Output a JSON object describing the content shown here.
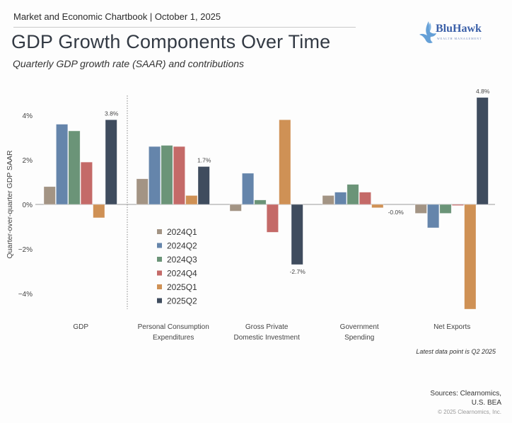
{
  "header": {
    "top_line": "Market and Economic Chartbook | October 1, 2025",
    "title": "GDP Growth Components Over Time",
    "subtitle": "Quarterly GDP growth rate (SAAR) and contributions"
  },
  "logo": {
    "name": "BluHawk",
    "tagline": "WEALTH MANAGEMENT",
    "icon": "hawk-icon"
  },
  "footer": {
    "latest_note": "Latest data point is Q2 2025",
    "sources_line1": "Sources: Clearnomics,",
    "sources_line2": "U.S. BEA",
    "copyright": "© 2025 Clearnomics, Inc."
  },
  "chart_data": {
    "type": "bar",
    "title": "GDP Growth Components Over Time",
    "subtitle": "Quarterly GDP growth rate (SAAR) and contributions",
    "xlabel": "",
    "ylabel": "Quarter-over-quarter GDP SAAR",
    "ylim": [
      -5,
      5.5
    ],
    "yticks": [
      4,
      2,
      0,
      -2,
      -4
    ],
    "ytick_labels": [
      "4%",
      "2%",
      "0%",
      "−2%",
      "−4%"
    ],
    "grid": false,
    "legend_position": "center-left (inside PCE group area)",
    "categories": [
      [
        "GDP"
      ],
      [
        "Personal Consumption",
        "Expenditures"
      ],
      [
        "Gross Private",
        "Domestic Investment"
      ],
      [
        "Government",
        "Spending"
      ],
      [
        "Net Exports"
      ]
    ],
    "series": [
      {
        "name": "2024Q1",
        "color": "#a39484",
        "values": [
          0.8,
          1.15,
          -0.3,
          0.4,
          -0.4
        ]
      },
      {
        "name": "2024Q2",
        "color": "#6585ab",
        "values": [
          3.6,
          2.6,
          1.4,
          0.55,
          -1.05
        ]
      },
      {
        "name": "2024Q3",
        "color": "#6b9478",
        "values": [
          3.3,
          2.65,
          0.2,
          0.9,
          -0.4
        ]
      },
      {
        "name": "2024Q4",
        "color": "#c46a68",
        "values": [
          1.9,
          2.6,
          -1.25,
          0.55,
          -0.05
        ]
      },
      {
        "name": "2025Q1",
        "color": "#cf9155",
        "values": [
          -0.6,
          0.4,
          3.8,
          -0.15,
          -4.7
        ]
      },
      {
        "name": "2025Q2",
        "color": "#3f4c5e",
        "values": [
          3.8,
          1.7,
          -2.7,
          -0.0,
          4.8
        ]
      }
    ],
    "data_labels": [
      {
        "category_index": 0,
        "series": "2025Q2",
        "text": "3.8%"
      },
      {
        "category_index": 1,
        "series": "2025Q2",
        "text": "1.7%"
      },
      {
        "category_index": 2,
        "series": "2025Q2",
        "text": "-2.7%"
      },
      {
        "category_index": 3,
        "series": "2025Q2",
        "text": "-0.0%"
      },
      {
        "category_index": 4,
        "series": "2025Q2",
        "text": "4.8%"
      }
    ],
    "separator_after_category": 0
  }
}
